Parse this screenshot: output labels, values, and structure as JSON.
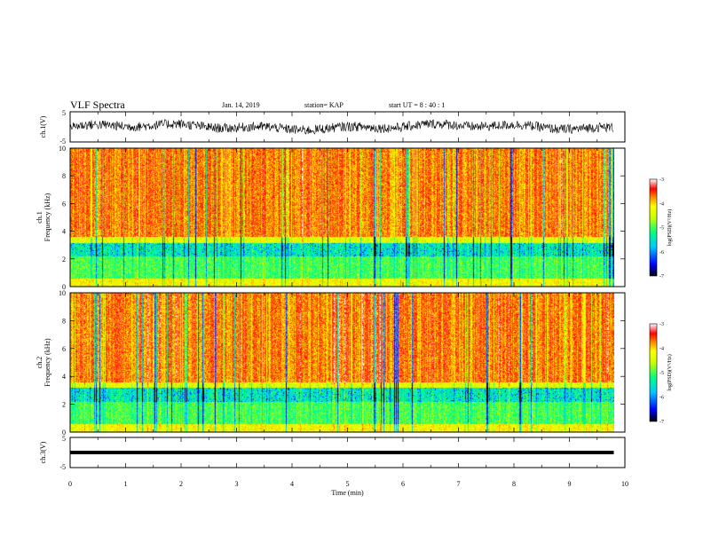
{
  "header": {
    "title": "VLF Spectra",
    "date": "Jan. 14, 2019",
    "station": "station= KAP",
    "start_ut": "start  UT  =   8  : 40 : 1"
  },
  "chart_data": [
    {
      "type": "line",
      "panel": "ch1-waveform",
      "ylabel": "ch.1(V)",
      "ylim": [
        -5,
        5
      ],
      "y_ticks": [
        "5",
        "-5"
      ],
      "xlim": [
        0,
        10
      ],
      "x_ticks": [
        0,
        1,
        2,
        3,
        4,
        5,
        6,
        7,
        8,
        9,
        10
      ],
      "data_end_min": 9.8,
      "series": [
        {
          "x": [
            0,
            9.8
          ],
          "y_range_approx": [
            -2.5,
            2.5
          ],
          "baseline": 0
        }
      ]
    },
    {
      "type": "heatmap",
      "panel": "ch1-spectrogram",
      "ylabel": "ch.1\nFrequency  (kHz)",
      "ylim": [
        0,
        10
      ],
      "y_ticks": [
        "0",
        "2",
        "4",
        "6",
        "8",
        "10"
      ],
      "xlim": [
        0,
        10
      ],
      "data_end_min": 9.8,
      "colorbar": {
        "label": "log(PSD)(V²/Hz)",
        "range": [
          -7,
          -3
        ],
        "ticks": [
          "-3",
          "-4",
          "-5",
          "-6",
          "-7"
        ]
      }
    },
    {
      "type": "heatmap",
      "panel": "ch2-spectrogram",
      "ylabel": "ch.2\nFrequency  (kHz)",
      "ylim": [
        0,
        10
      ],
      "y_ticks": [
        "0",
        "2",
        "4",
        "6",
        "8",
        "10"
      ],
      "xlim": [
        0,
        10
      ],
      "data_end_min": 9.8,
      "colorbar": {
        "label": "log(PSD)(V²/Hz)",
        "range": [
          -7,
          -3
        ],
        "ticks": [
          "-3",
          "-4",
          "-5",
          "-6",
          "-7"
        ]
      }
    },
    {
      "type": "line",
      "panel": "ch3-waveform",
      "ylabel": "ch.3(V)",
      "ylim": [
        -5,
        5
      ],
      "y_ticks": [
        "5",
        "-5"
      ],
      "xlim": [
        0,
        10
      ],
      "data_end_min": 9.8,
      "series": [
        {
          "x": [
            0,
            9.8
          ],
          "y": [
            0,
            0
          ]
        }
      ]
    }
  ],
  "xaxis": {
    "label": "Time  (min)",
    "ticks": [
      "0",
      "1",
      "2",
      "3",
      "4",
      "5",
      "6",
      "7",
      "8",
      "9",
      "10"
    ]
  },
  "colors": {
    "spectrogram_scale": [
      "#000000",
      "#0000ff",
      "#00c8ff",
      "#00ff80",
      "#c8ff00",
      "#ffff00",
      "#ff8000",
      "#ff0000",
      "#ffffff"
    ]
  }
}
